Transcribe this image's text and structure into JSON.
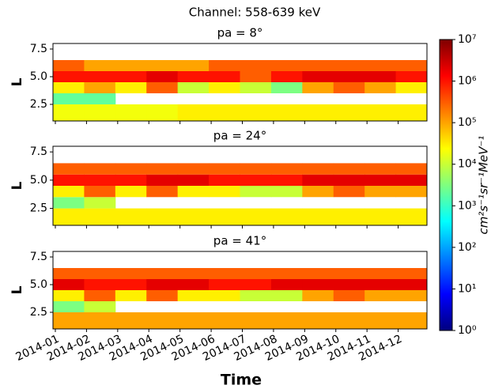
{
  "chart_data": {
    "type": "heatmap",
    "title": "Channel: 558-639 keV",
    "x_label": "Time",
    "y_label": "L",
    "colorbar_label": "cm²s⁻¹sr⁻¹MeV⁻¹",
    "categories": [
      "2014-01",
      "2014-02",
      "2014-03",
      "2014-04",
      "2014-05",
      "2014-06",
      "2014-07",
      "2014-08",
      "2014-09",
      "2014-10",
      "2014-11",
      "2014-12"
    ],
    "y_bins": [
      1,
      2.5,
      3.5,
      4.5,
      5.5,
      6.5
    ],
    "ylim": [
      1,
      8
    ],
    "yticks": [
      2.5,
      {
        "value": 5,
        "label": "5.0"
      },
      7.5
    ],
    "log_color": true,
    "clim": [
      1,
      10000000
    ],
    "cticks": [
      {
        "value": 1,
        "label": "10⁰"
      },
      {
        "value": 10,
        "label": "10¹"
      },
      {
        "value": 100,
        "label": "10²"
      },
      {
        "value": 1000,
        "label": "10³"
      },
      {
        "value": 10000,
        "label": "10⁴"
      },
      {
        "value": 100000,
        "label": "10⁵"
      },
      {
        "value": 1000000,
        "label": "10⁶"
      },
      {
        "value": 10000000,
        "label": "10⁷"
      }
    ],
    "colormap": [
      "#00007f",
      "#0000ff",
      "#007fff",
      "#00ffff",
      "#7fff7f",
      "#ffff00",
      "#ff7f00",
      "#ff0000",
      "#7f0000"
    ],
    "panels": [
      {
        "title": "pa = 8°",
        "values": [
          [
            20000,
            20000,
            20000,
            20000,
            30000,
            30000,
            30000,
            30000,
            30000,
            30000,
            30000,
            30000
          ],
          [
            2000,
            2000,
            null,
            null,
            null,
            null,
            null,
            null,
            null,
            null,
            null,
            null
          ],
          [
            30000,
            100000,
            30000,
            300000,
            10000,
            30000,
            10000,
            3000,
            100000,
            300000,
            100000,
            30000
          ],
          [
            1000000,
            1000000,
            1000000,
            2000000,
            1000000,
            1000000,
            300000,
            1000000,
            2000000,
            2000000,
            2000000,
            1000000
          ],
          [
            300000,
            100000,
            100000,
            100000,
            100000,
            300000,
            300000,
            300000,
            300000,
            300000,
            300000,
            300000
          ]
        ]
      },
      {
        "title": "pa = 24°",
        "values": [
          [
            30000,
            30000,
            30000,
            30000,
            30000,
            30000,
            30000,
            30000,
            30000,
            30000,
            30000,
            30000
          ],
          [
            3000,
            10000,
            null,
            null,
            null,
            null,
            null,
            null,
            null,
            null,
            null,
            null
          ],
          [
            30000,
            300000,
            30000,
            300000,
            30000,
            30000,
            10000,
            10000,
            100000,
            300000,
            100000,
            100000
          ],
          [
            1000000,
            1000000,
            1000000,
            2000000,
            2000000,
            1000000,
            1000000,
            1000000,
            2000000,
            2000000,
            2000000,
            2000000
          ],
          [
            300000,
            300000,
            300000,
            300000,
            300000,
            300000,
            300000,
            300000,
            300000,
            300000,
            300000,
            300000
          ]
        ]
      },
      {
        "title": "pa = 41°",
        "values": [
          [
            100000,
            100000,
            100000,
            100000,
            100000,
            100000,
            100000,
            100000,
            100000,
            100000,
            100000,
            100000
          ],
          [
            3000,
            10000,
            null,
            null,
            null,
            null,
            null,
            null,
            null,
            null,
            null,
            null
          ],
          [
            30000,
            300000,
            30000,
            300000,
            30000,
            30000,
            10000,
            10000,
            100000,
            300000,
            100000,
            100000
          ],
          [
            2000000,
            1000000,
            1000000,
            2000000,
            2000000,
            1000000,
            1000000,
            2000000,
            2000000,
            2000000,
            2000000,
            2000000
          ],
          [
            300000,
            300000,
            300000,
            300000,
            300000,
            300000,
            300000,
            300000,
            300000,
            300000,
            300000,
            300000
          ]
        ]
      }
    ]
  }
}
